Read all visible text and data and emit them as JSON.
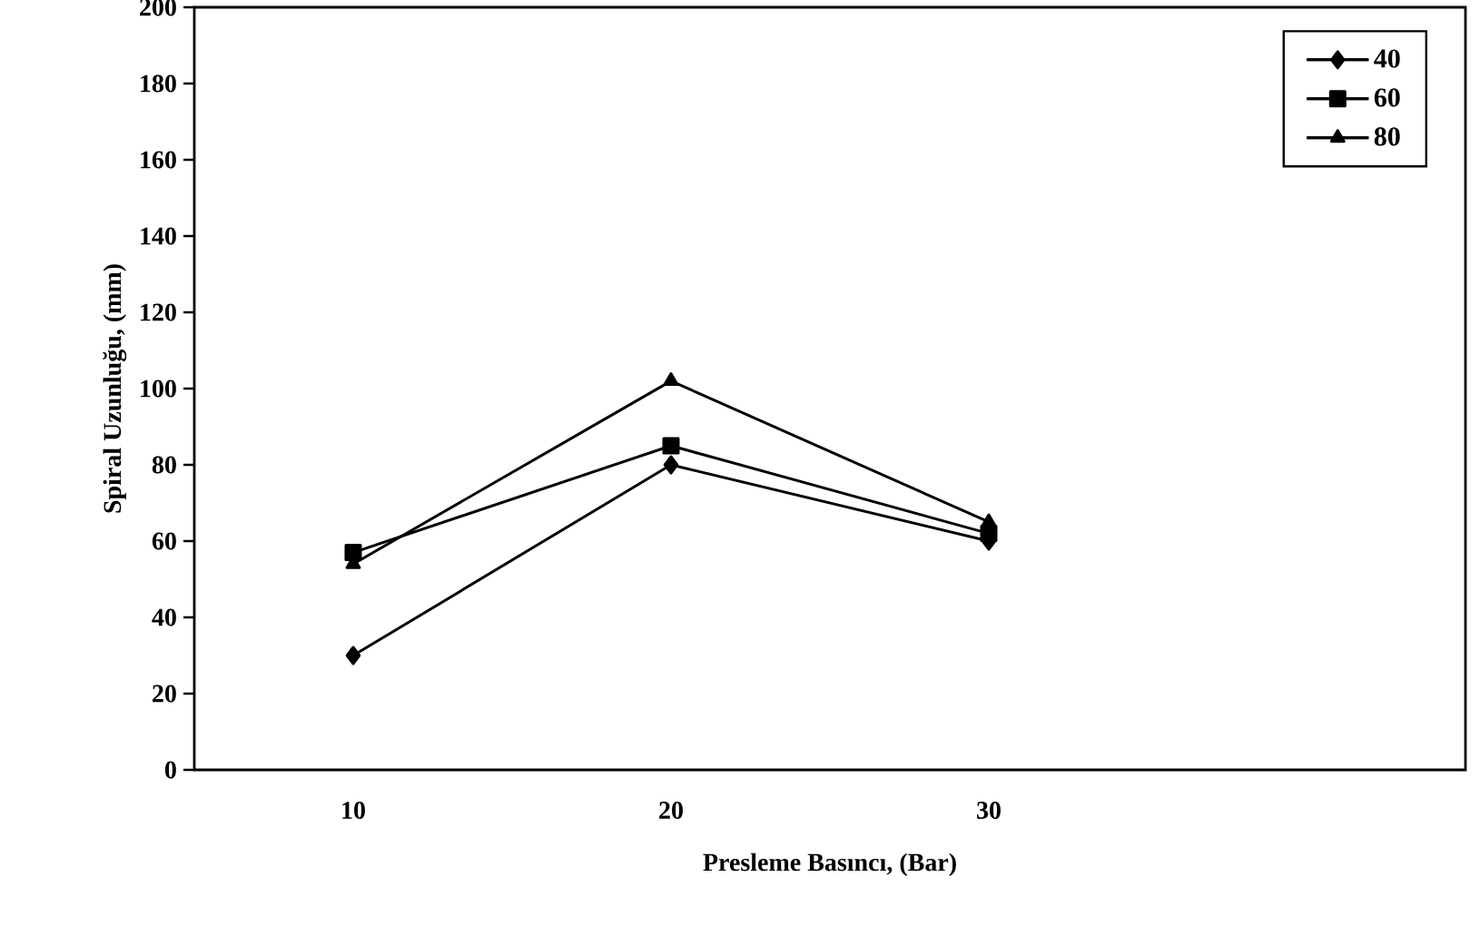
{
  "chart_data": {
    "type": "line",
    "xlabel": "Presleme Basıncı, (Bar)",
    "ylabel": "Spiral Uzunluğu, (mm)",
    "categories": [
      "10",
      "20",
      "30",
      null
    ],
    "series": [
      {
        "name": "40",
        "color": "#000000",
        "marker": "diamond",
        "values": [
          30,
          80,
          60,
          null
        ]
      },
      {
        "name": "60",
        "color": "#000000",
        "marker": "square",
        "values": [
          57,
          85,
          62,
          null
        ]
      },
      {
        "name": "80",
        "color": "#000000",
        "marker": "triangle",
        "values": [
          54,
          102,
          65,
          null
        ]
      }
    ],
    "ylim": [
      0,
      200
    ],
    "yticks": [
      0,
      20,
      40,
      60,
      80,
      100,
      120,
      140,
      160,
      180,
      200
    ],
    "legend": "top right",
    "grid": false,
    "line_style": "solid"
  }
}
